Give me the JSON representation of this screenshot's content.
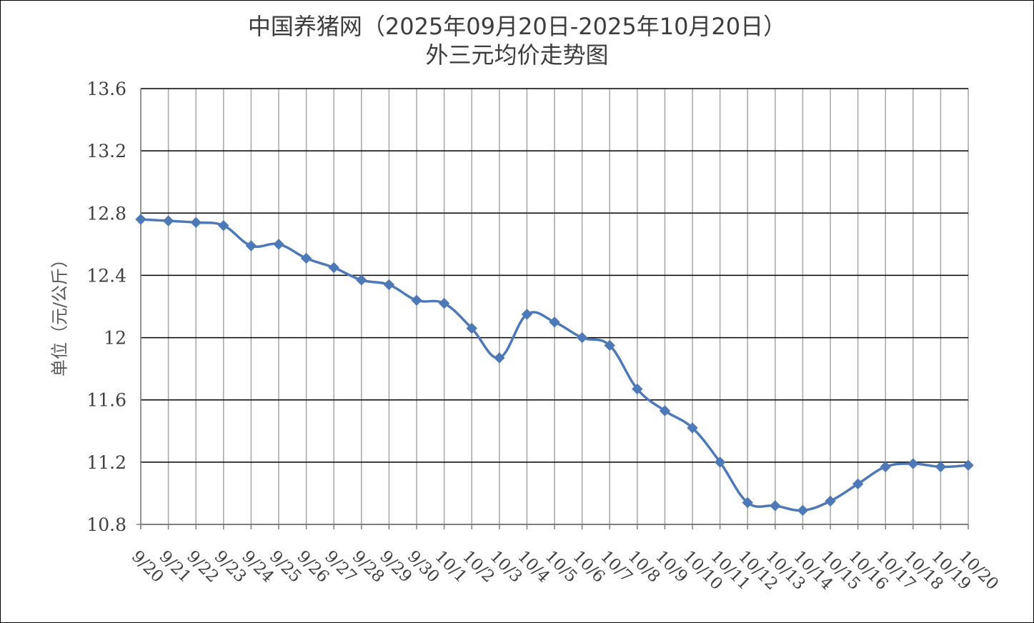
{
  "chart_data": {
    "type": "line",
    "title": "中国养猪网（2025年09月20日-2025年10月20日）",
    "subtitle": "外三元均价走势图",
    "ylabel": "单位（元/公斤）",
    "xlabel": "",
    "ylim": [
      10.8,
      13.6
    ],
    "yticks": [
      "13.6",
      "13.2",
      "12.8",
      "12.4",
      "12",
      "11.6",
      "11.2",
      "10.8"
    ],
    "ytick_values": [
      13.6,
      13.2,
      12.8,
      12.4,
      12.0,
      11.6,
      11.2,
      10.8
    ],
    "grid": true,
    "legend": "none",
    "categories": [
      "9/20",
      "9/21",
      "9/22",
      "9/23",
      "9/24",
      "9/25",
      "9/26",
      "9/27",
      "9/28",
      "9/29",
      "9/30",
      "10/1",
      "10/2",
      "10/3",
      "10/4",
      "10/5",
      "10/6",
      "10/7",
      "10/8",
      "10/9",
      "10/10",
      "10/11",
      "10/12",
      "10/13",
      "10/14",
      "10/15",
      "10/16",
      "10/17",
      "10/18",
      "10/19",
      "10/20"
    ],
    "values": [
      12.76,
      12.75,
      12.74,
      12.72,
      12.59,
      12.6,
      12.51,
      12.45,
      12.37,
      12.34,
      12.24,
      12.22,
      12.06,
      11.87,
      12.15,
      12.1,
      12.0,
      11.95,
      11.67,
      11.53,
      11.42,
      11.2,
      10.94,
      10.92,
      10.89,
      10.95,
      11.06,
      11.17,
      11.19,
      11.17,
      11.18
    ],
    "colors": {
      "line": "#4e79b7",
      "grid": "#000000",
      "axis": "#808080"
    }
  }
}
